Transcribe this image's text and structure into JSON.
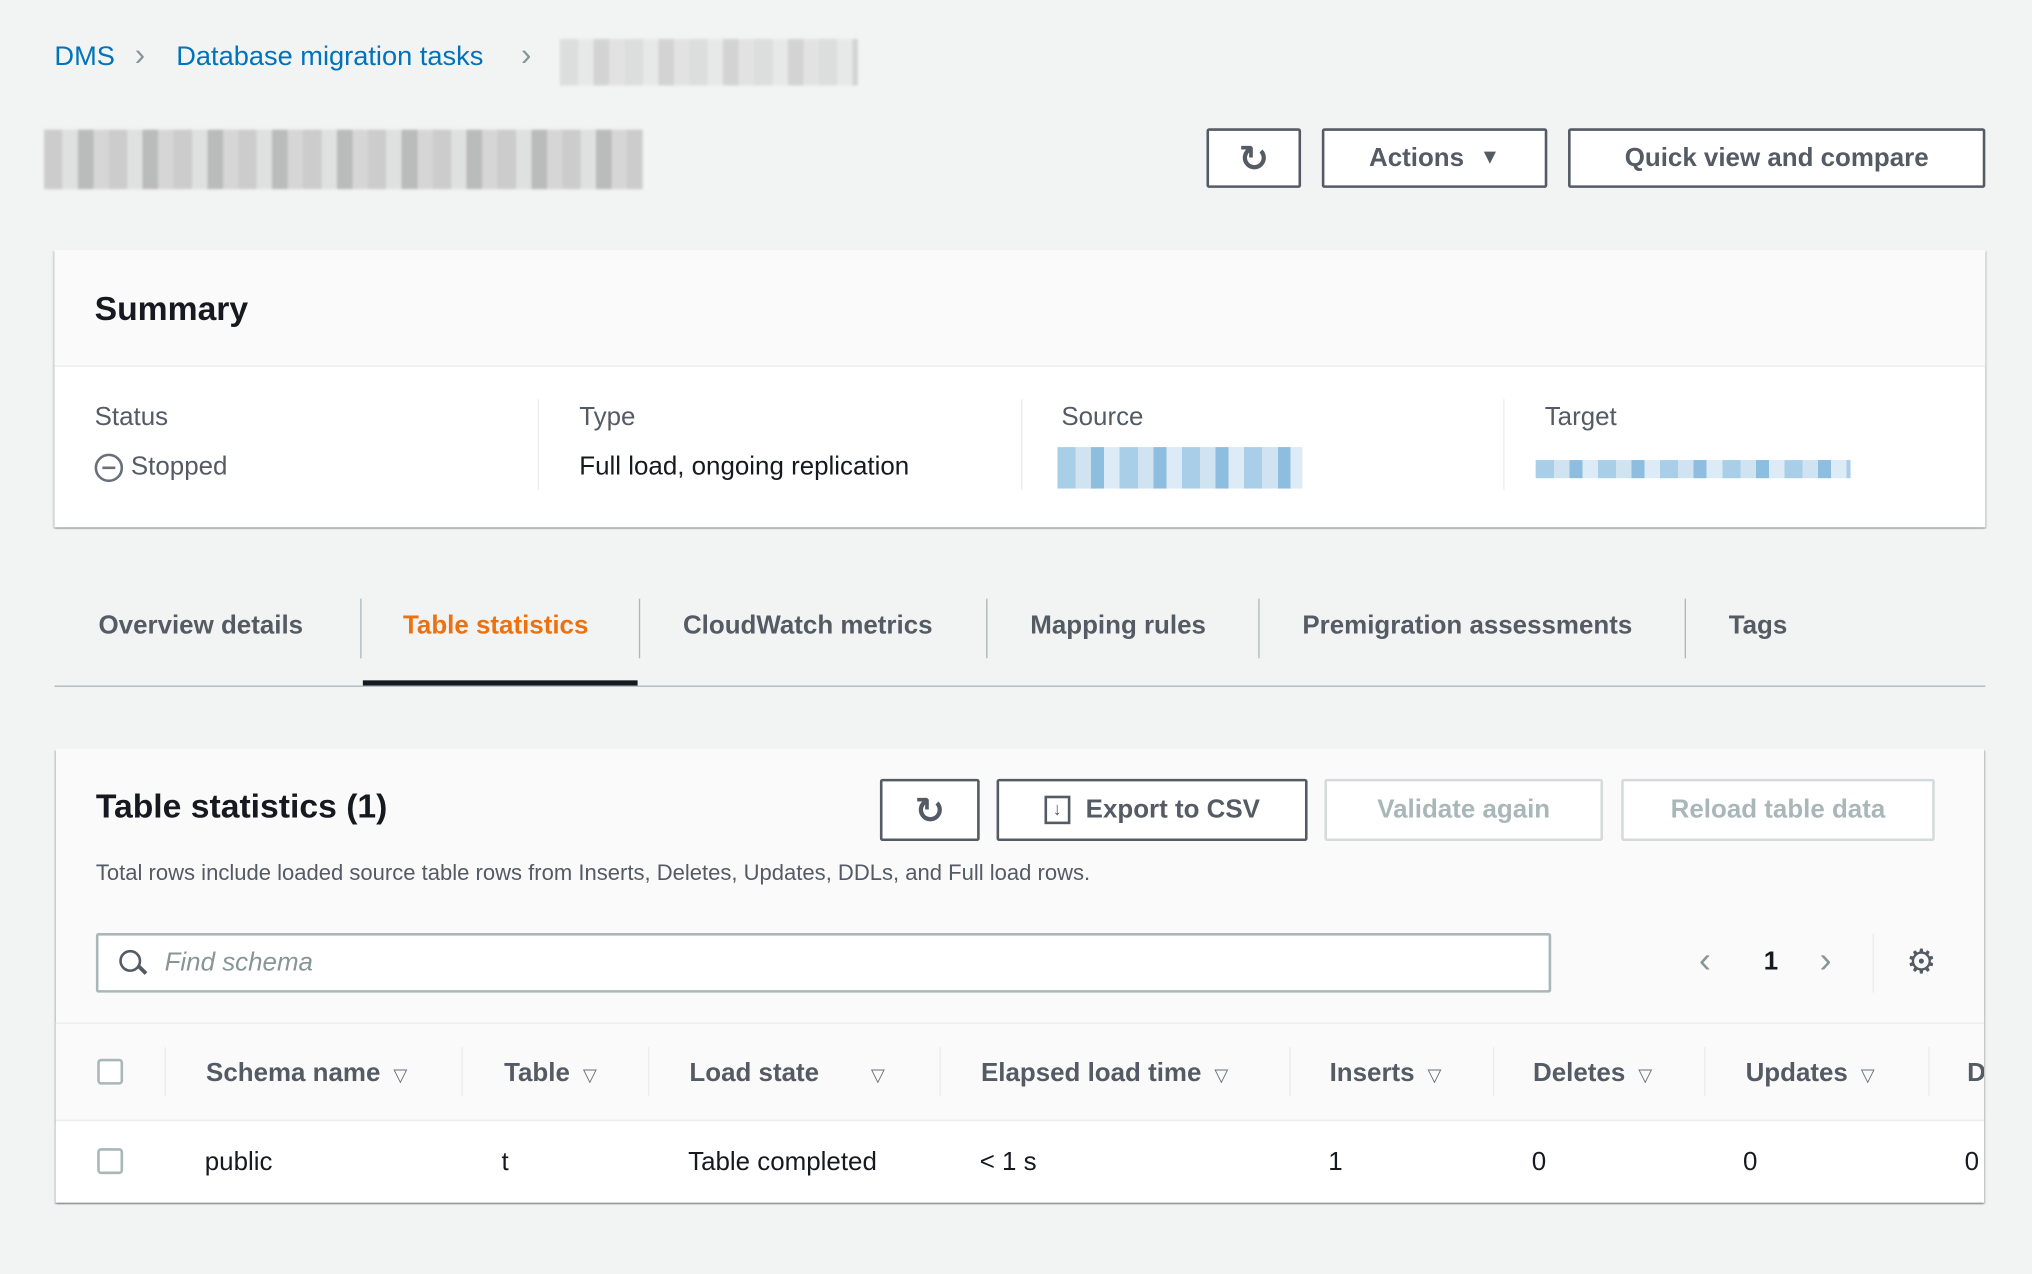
{
  "breadcrumb": {
    "items": [
      "DMS",
      "Database migration tasks"
    ]
  },
  "header": {
    "actions_label": "Actions",
    "quick_view_label": "Quick view and compare"
  },
  "summary": {
    "title": "Summary",
    "status_label": "Status",
    "status_value": "Stopped",
    "type_label": "Type",
    "type_value": "Full load, ongoing replication",
    "source_label": "Source",
    "target_label": "Target"
  },
  "tabs": [
    {
      "label": "Overview details"
    },
    {
      "label": "Table statistics",
      "active": true
    },
    {
      "label": "CloudWatch metrics"
    },
    {
      "label": "Mapping rules"
    },
    {
      "label": "Premigration assessments"
    },
    {
      "label": "Tags"
    }
  ],
  "table_stats": {
    "title": "Table statistics (1)",
    "export_label": "Export to CSV",
    "validate_label": "Validate again",
    "reload_label": "Reload table data",
    "description": "Total rows include loaded source table rows from Inserts, Deletes, Updates, DDLs, and Full load rows.",
    "search_placeholder": "Find schema",
    "page": "1",
    "columns": [
      "Schema name",
      "Table",
      "Load state",
      "Elapsed load time",
      "Inserts",
      "Deletes",
      "Updates",
      "D"
    ],
    "rows": [
      [
        "public",
        "t",
        "Table completed",
        "< 1 s",
        "1",
        "0",
        "0",
        "0"
      ]
    ]
  },
  "colors": {
    "link": "#0073bb",
    "active_tab": "#ec7211",
    "text": "#16191f",
    "secondary": "#545b64"
  }
}
